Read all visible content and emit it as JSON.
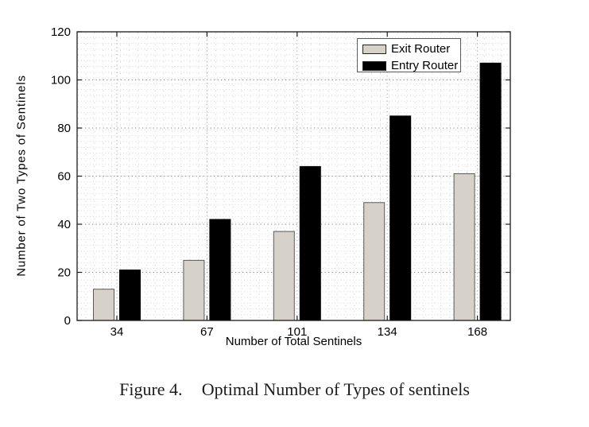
{
  "figure": {
    "caption_label": "Figure 4.",
    "caption_text": "Optimal Number of Types of sentinels"
  },
  "chart_data": {
    "type": "bar",
    "title": "",
    "xlabel": "Number of Total Sentinels",
    "ylabel": "Number of Two Types of Sentinels",
    "categories": [
      "34",
      "67",
      "101",
      "134",
      "168"
    ],
    "series": [
      {
        "name": "Exit Router",
        "values": [
          13,
          25,
          37,
          49,
          61
        ],
        "color": "#d6d2c9",
        "border": "#5a5a5a"
      },
      {
        "name": "Entry Router",
        "values": [
          21,
          42,
          64,
          85,
          107
        ],
        "color": "#000000",
        "border": "#000000"
      }
    ],
    "ylim": [
      0,
      120
    ],
    "yticks": [
      0,
      20,
      40,
      60,
      80,
      100,
      120
    ],
    "grid": "dotted-minor-and-major",
    "legend_position": "top-right-inside"
  },
  "colors": {
    "background": "#ffffff",
    "axis": "#1a1a1a",
    "minor_grid": "#d2d2d2",
    "major_grid": "#8c8c8c",
    "legend_border": "#5a5a5a"
  }
}
